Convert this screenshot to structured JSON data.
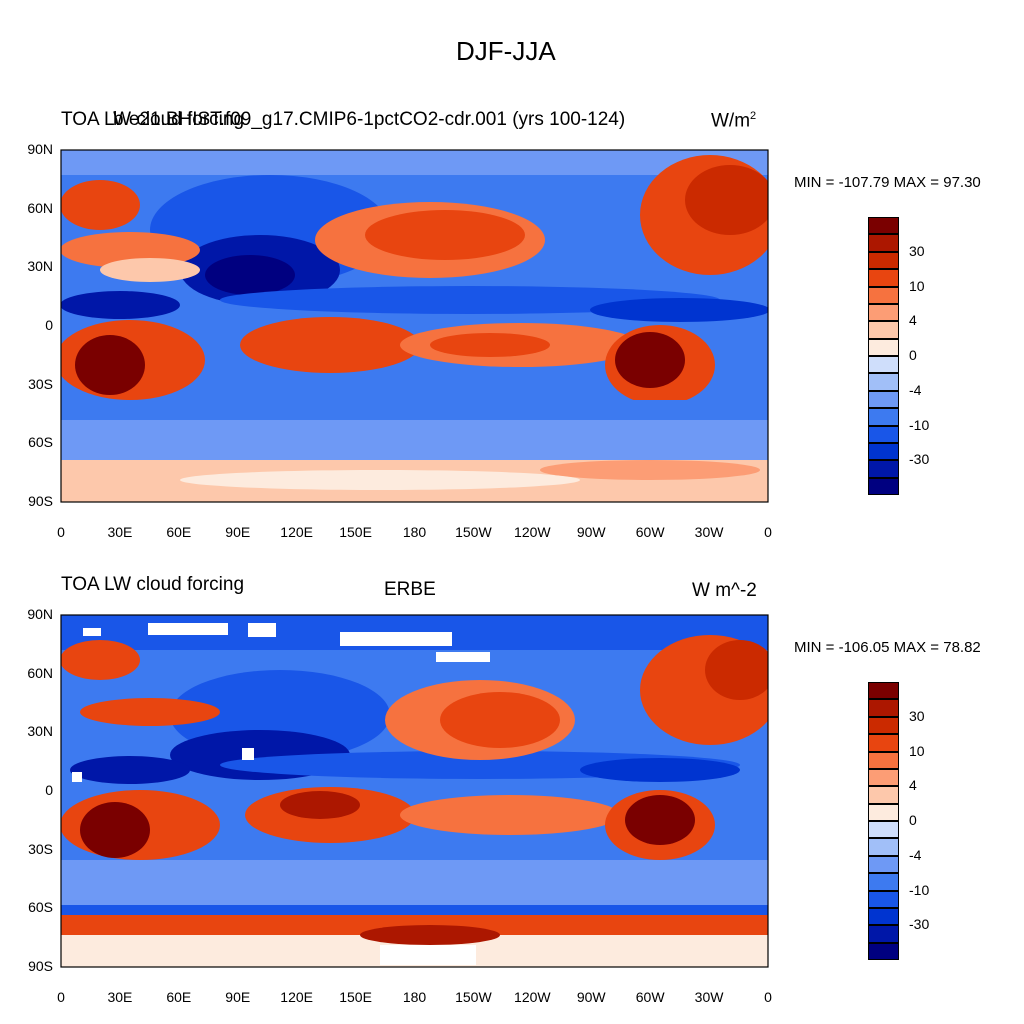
{
  "main_title": "DJF-JJA",
  "colors": {
    "bins": [
      "#000080",
      "#0017a8",
      "#0034d0",
      "#1956e8",
      "#3d7af0",
      "#6e99f5",
      "#a1bff8",
      "#cfdefb",
      "#fdebde",
      "#fdc8ab",
      "#fc9d75",
      "#f6723f",
      "#e84510",
      "#cb2a00",
      "#ac1700",
      "#7a0000"
    ],
    "land_outline": "#000000"
  },
  "panels": [
    {
      "title_left": "TOA LW cloud forcing",
      "title_center": "b.e21.BHIST.f09_g17.CMIP6-1pctCO2-cdr.001 (yrs 100-124)",
      "units": "W/m",
      "units_sup": "2",
      "stats": "MIN = -107.79 MAX =  97.30"
    },
    {
      "title_left": "TOA LW cloud forcing",
      "title_center": "ERBE",
      "units": "W m^-2",
      "units_sup": "",
      "stats": "MIN = -106.05 MAX =  78.82"
    }
  ],
  "lat_ticks": [
    "90N",
    "60N",
    "30N",
    "0",
    "30S",
    "60S",
    "90S"
  ],
  "lon_ticks": [
    "0",
    "30E",
    "60E",
    "90E",
    "120E",
    "150E",
    "180",
    "150W",
    "120W",
    "90W",
    "60W",
    "30W",
    "0"
  ],
  "colorbar_labels": [
    "30",
    "10",
    "4",
    "0",
    "-4",
    "-10",
    "-30"
  ]
}
